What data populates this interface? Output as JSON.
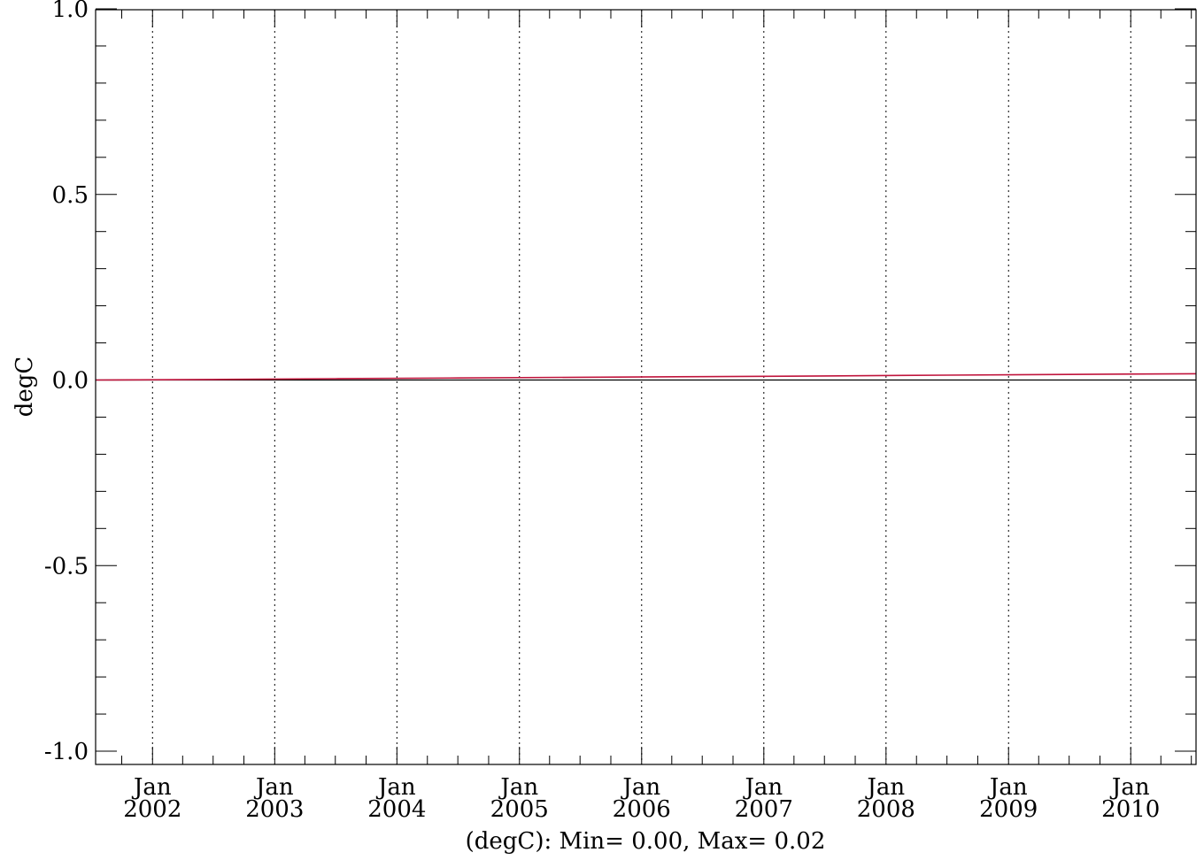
{
  "chart_data": {
    "type": "line",
    "ylabel": "degC",
    "footer": "(degC): Min= 0.00, Max= 0.02",
    "x_range": [
      "2001-07-15",
      "2010-07-15"
    ],
    "ylim": [
      -1.0,
      1.0
    ],
    "y_ticks": [
      {
        "value": 1.0,
        "label": "1.0"
      },
      {
        "value": 0.5,
        "label": "0.5"
      },
      {
        "value": 0.0,
        "label": "0.0"
      },
      {
        "value": -0.5,
        "label": "-0.5"
      },
      {
        "value": -1.0,
        "label": "-1.0"
      }
    ],
    "x_ticks": [
      {
        "date": "2002-01-01",
        "month": "Jan",
        "year": "2002"
      },
      {
        "date": "2003-01-01",
        "month": "Jan",
        "year": "2003"
      },
      {
        "date": "2004-01-01",
        "month": "Jan",
        "year": "2004"
      },
      {
        "date": "2005-01-01",
        "month": "Jan",
        "year": "2005"
      },
      {
        "date": "2006-01-01",
        "month": "Jan",
        "year": "2006"
      },
      {
        "date": "2007-01-01",
        "month": "Jan",
        "year": "2007"
      },
      {
        "date": "2008-01-01",
        "month": "Jan",
        "year": "2008"
      },
      {
        "date": "2009-01-01",
        "month": "Jan",
        "year": "2009"
      },
      {
        "date": "2010-01-01",
        "month": "Jan",
        "year": "2010"
      }
    ],
    "grid": "vertical dotted at January of each year",
    "reference_line": 0.0,
    "series": [
      {
        "color": "#c0143c",
        "points": [
          {
            "x": "2001-07-15",
            "y": 0.0
          },
          {
            "x": "2002-07-01",
            "y": 0.0015
          },
          {
            "x": "2003-07-01",
            "y": 0.0035
          },
          {
            "x": "2004-07-01",
            "y": 0.0055
          },
          {
            "x": "2005-07-01",
            "y": 0.0075
          },
          {
            "x": "2006-07-01",
            "y": 0.009
          },
          {
            "x": "2007-07-01",
            "y": 0.011
          },
          {
            "x": "2008-07-01",
            "y": 0.013
          },
          {
            "x": "2009-07-01",
            "y": 0.015
          },
          {
            "x": "2010-07-15",
            "y": 0.017
          }
        ]
      }
    ]
  }
}
